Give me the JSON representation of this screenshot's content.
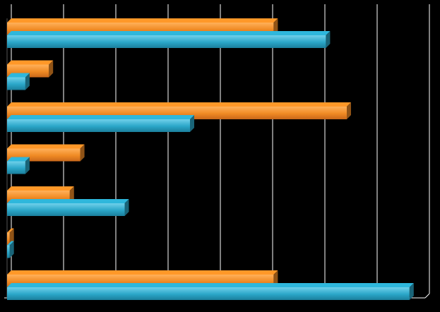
{
  "chart_data": {
    "type": "bar",
    "orientation": "horizontal",
    "style": "3d",
    "categories": [
      "",
      "",
      "",
      "",
      "",
      "",
      ""
    ],
    "series": [
      {
        "values": [
          5.1,
          0.8,
          6.5,
          1.4,
          1.2,
          0.05,
          5.1
        ],
        "color": "#f08a24"
      },
      {
        "values": [
          6.1,
          0.35,
          3.5,
          0.35,
          2.25,
          0.05,
          7.7
        ],
        "color": "#2aa6c8"
      }
    ],
    "xlim": [
      0,
      8
    ],
    "grid": true,
    "gridline_color": "#ffffff",
    "background": "#000000",
    "legend": "none"
  }
}
